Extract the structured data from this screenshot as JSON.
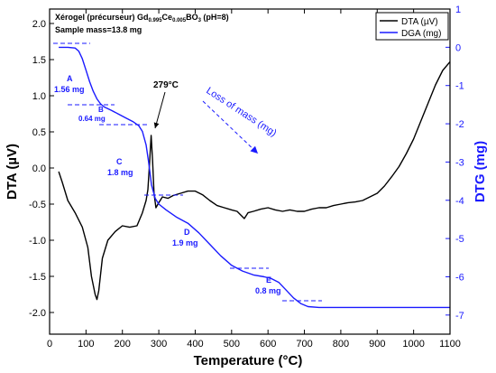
{
  "chart_data": {
    "type": "line",
    "annotation_title_parts": {
      "prefix": "Xérogel (précurseur) Gd",
      "sub1": "0.995",
      "mid1": "Ce",
      "sub2": "0.005",
      "mid2": "BO",
      "sub3": "3",
      "suffix": " (pH=8)"
    },
    "sample_mass": "Sample mass=13.8 mg",
    "xlabel": "Temperature (°C)",
    "ylabel_left": "DTA (µV)",
    "ylabel_right": "DTG (mg)",
    "xlim": [
      0,
      1100
    ],
    "ylim_left": [
      -2.3,
      2.2
    ],
    "ylim_right": [
      -7.5,
      1.0
    ],
    "x_ticks": [
      0,
      100,
      200,
      300,
      400,
      500,
      600,
      700,
      800,
      900,
      1000,
      1100
    ],
    "y_left_ticks": [
      -2.0,
      -1.5,
      -1.0,
      -0.5,
      0.0,
      0.5,
      1.0,
      1.5,
      2.0
    ],
    "y_left_tick_labels": [
      "-2.0",
      "-1.5",
      "-1.0",
      "-0.5",
      "0.0",
      "0.5",
      "1.0",
      "1.5",
      "2.0"
    ],
    "y_right_ticks": [
      -7,
      -6,
      -5,
      -4,
      -3,
      -2,
      -1,
      0,
      1
    ],
    "legend_position": "top-right",
    "series": [
      {
        "name": "DTA (µV)",
        "axis": "left",
        "color": "#000000",
        "x": [
          25,
          35,
          50,
          70,
          90,
          105,
          115,
          125,
          130,
          135,
          145,
          160,
          180,
          200,
          220,
          240,
          255,
          265,
          270,
          275,
          279,
          283,
          287,
          292,
          300,
          310,
          325,
          340,
          360,
          380,
          400,
          420,
          440,
          460,
          480,
          500,
          515,
          525,
          535,
          545,
          560,
          580,
          600,
          620,
          640,
          660,
          680,
          700,
          720,
          740,
          760,
          780,
          800,
          820,
          840,
          860,
          880,
          900,
          920,
          940,
          960,
          980,
          1000,
          1020,
          1040,
          1060,
          1080,
          1100
        ],
        "y": [
          -0.05,
          -0.2,
          -0.45,
          -0.62,
          -0.82,
          -1.1,
          -1.5,
          -1.75,
          -1.82,
          -1.7,
          -1.25,
          -1.0,
          -0.88,
          -0.8,
          -0.82,
          -0.8,
          -0.62,
          -0.45,
          -0.3,
          0.1,
          0.45,
          0.1,
          -0.35,
          -0.55,
          -0.48,
          -0.4,
          -0.42,
          -0.38,
          -0.35,
          -0.32,
          -0.32,
          -0.37,
          -0.45,
          -0.52,
          -0.55,
          -0.58,
          -0.6,
          -0.65,
          -0.7,
          -0.62,
          -0.6,
          -0.57,
          -0.55,
          -0.58,
          -0.6,
          -0.58,
          -0.6,
          -0.6,
          -0.57,
          -0.55,
          -0.55,
          -0.52,
          -0.5,
          -0.48,
          -0.47,
          -0.45,
          -0.4,
          -0.35,
          -0.25,
          -0.12,
          0.02,
          0.2,
          0.4,
          0.65,
          0.9,
          1.15,
          1.35,
          1.47
        ]
      },
      {
        "name": "DGA (mg)",
        "axis": "right",
        "color": "#1a1aff",
        "x": [
          25,
          50,
          70,
          80,
          90,
          100,
          110,
          120,
          130,
          140,
          150,
          170,
          190,
          210,
          230,
          245,
          255,
          265,
          272,
          280,
          290,
          300,
          320,
          350,
          380,
          410,
          440,
          470,
          500,
          530,
          560,
          590,
          610,
          630,
          650,
          670,
          690,
          710,
          740,
          780,
          800,
          900,
          1000,
          1100
        ],
        "y": [
          0.0,
          0.0,
          -0.02,
          -0.1,
          -0.3,
          -0.6,
          -0.9,
          -1.15,
          -1.35,
          -1.48,
          -1.56,
          -1.65,
          -1.75,
          -1.85,
          -1.95,
          -2.05,
          -2.2,
          -2.55,
          -3.0,
          -3.6,
          -3.95,
          -4.1,
          -4.25,
          -4.45,
          -4.6,
          -4.85,
          -5.15,
          -5.45,
          -5.7,
          -5.85,
          -5.95,
          -6.0,
          -6.05,
          -6.15,
          -6.35,
          -6.55,
          -6.7,
          -6.78,
          -6.8,
          -6.8,
          -6.8,
          -6.8,
          -6.8,
          -6.8
        ]
      }
    ],
    "annotations": {
      "peak": "279°C",
      "loss": "Loss of mass (mg)",
      "steps": [
        {
          "letter": "A",
          "mass": "1.56 mg"
        },
        {
          "letter": "B",
          "mass": "0.64 mg"
        },
        {
          "letter": "C",
          "mass": "1.8 mg"
        },
        {
          "letter": "D",
          "mass": "1.9 mg"
        },
        {
          "letter": "E",
          "mass": "0.8 mg"
        }
      ]
    }
  }
}
